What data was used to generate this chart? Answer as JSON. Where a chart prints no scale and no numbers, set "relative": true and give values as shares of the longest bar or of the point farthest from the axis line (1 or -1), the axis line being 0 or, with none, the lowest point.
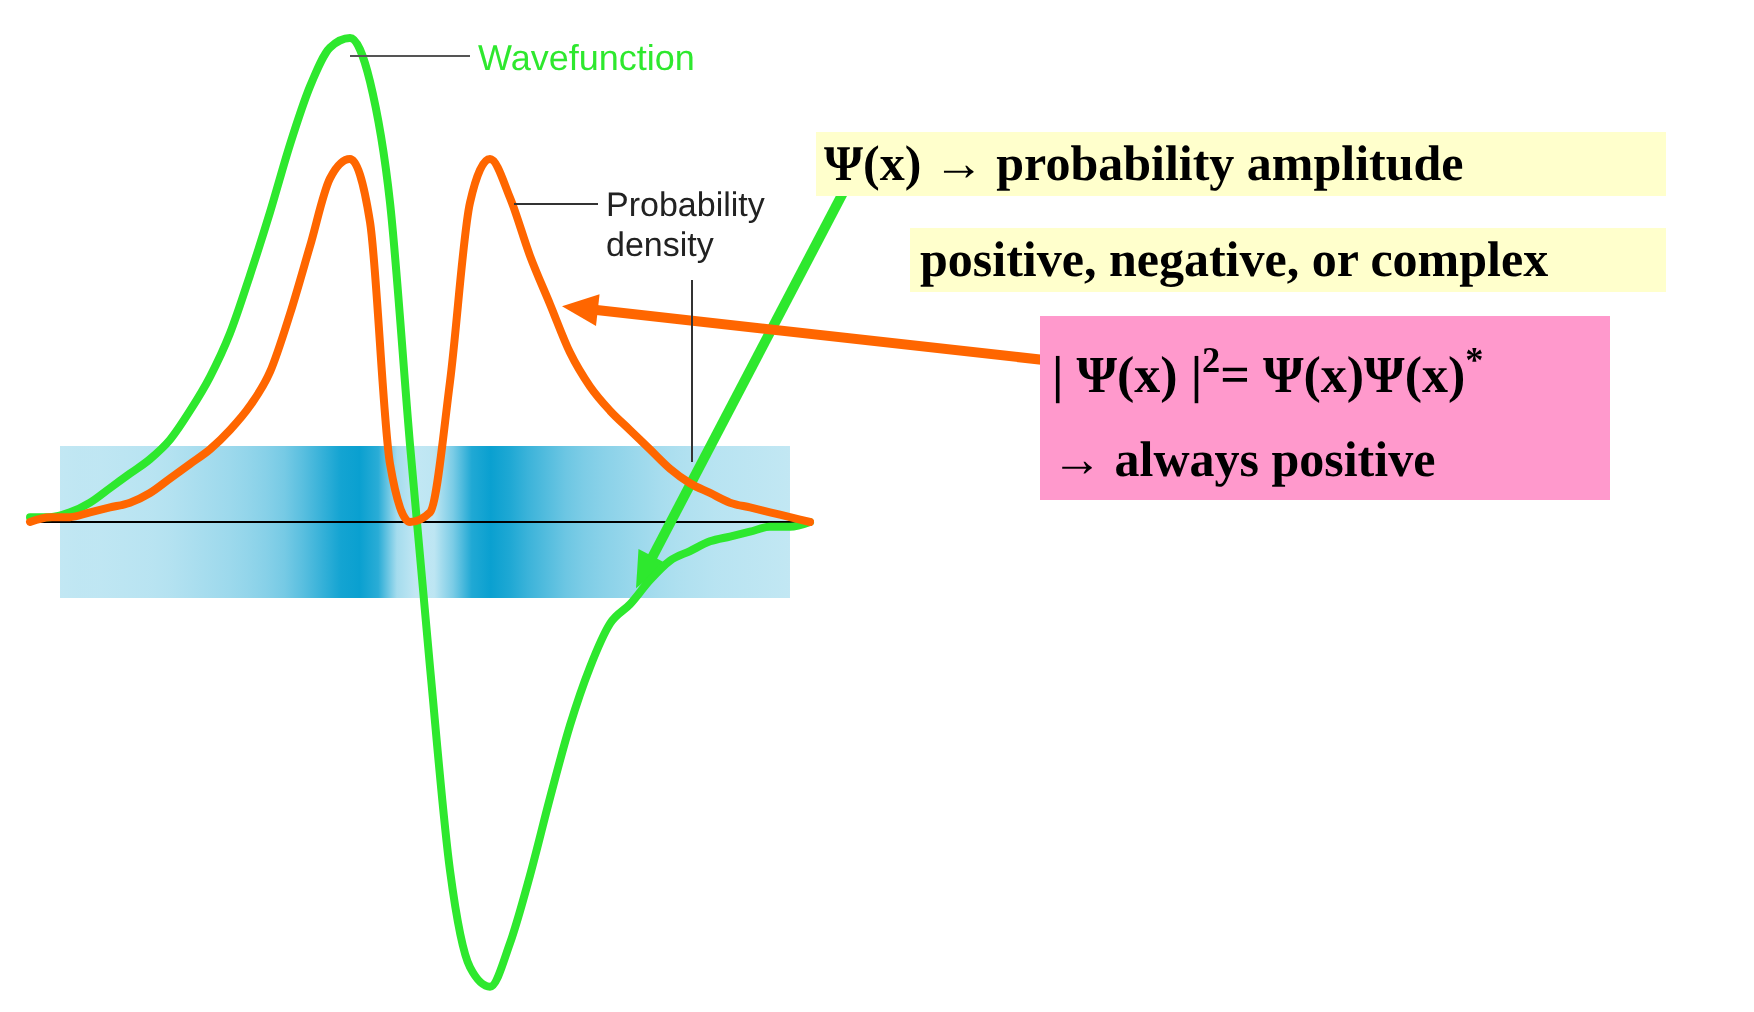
{
  "chart_data": {
    "type": "line",
    "relative": true,
    "categories": [
      null,
      null,
      null,
      null,
      null,
      null,
      null,
      null,
      null,
      null,
      null,
      null,
      null,
      null,
      null,
      null,
      null,
      null,
      null,
      null,
      null,
      null,
      null,
      null,
      null,
      null,
      null,
      null,
      null,
      null,
      null,
      null,
      null,
      null,
      null,
      null,
      null,
      null,
      null,
      null
    ],
    "series": [
      {
        "name": "Wavefunction",
        "color": "#2ee82e",
        "values": [
          0.01,
          0.01,
          0.02,
          0.04,
          0.07,
          0.1,
          0.13,
          0.17,
          0.23,
          0.3,
          0.39,
          0.51,
          0.64,
          0.78,
          0.9,
          0.98,
          1.0,
          0.91,
          0.66,
          0.16,
          -0.3,
          -0.72,
          -0.92,
          -0.96,
          -0.87,
          -0.73,
          -0.57,
          -0.42,
          -0.3,
          -0.21,
          -0.17,
          -0.12,
          -0.08,
          -0.06,
          -0.04,
          -0.03,
          -0.02,
          -0.01,
          -0.01,
          0
        ]
      },
      {
        "name": "Probability density",
        "color": "#ff6600",
        "values": [
          0,
          0.01,
          0.01,
          0.02,
          0.03,
          0.04,
          0.06,
          0.09,
          0.12,
          0.15,
          0.19,
          0.24,
          0.31,
          0.43,
          0.57,
          0.71,
          0.75,
          0.62,
          0.12,
          0,
          0.02,
          0.29,
          0.66,
          0.75,
          0.67,
          0.55,
          0.45,
          0.35,
          0.28,
          0.23,
          0.19,
          0.15,
          0.11,
          0.08,
          0.06,
          0.04,
          0.03,
          0.02,
          0.01,
          0
        ]
      }
    ],
    "annotations": [
      "Ψ(x) → probability amplitude",
      "positive, negative, or complex",
      "| Ψ(x) |$^{2}$= Ψ(x)Ψ(x)$^{*}$",
      "→ always positive"
    ]
  }
}
